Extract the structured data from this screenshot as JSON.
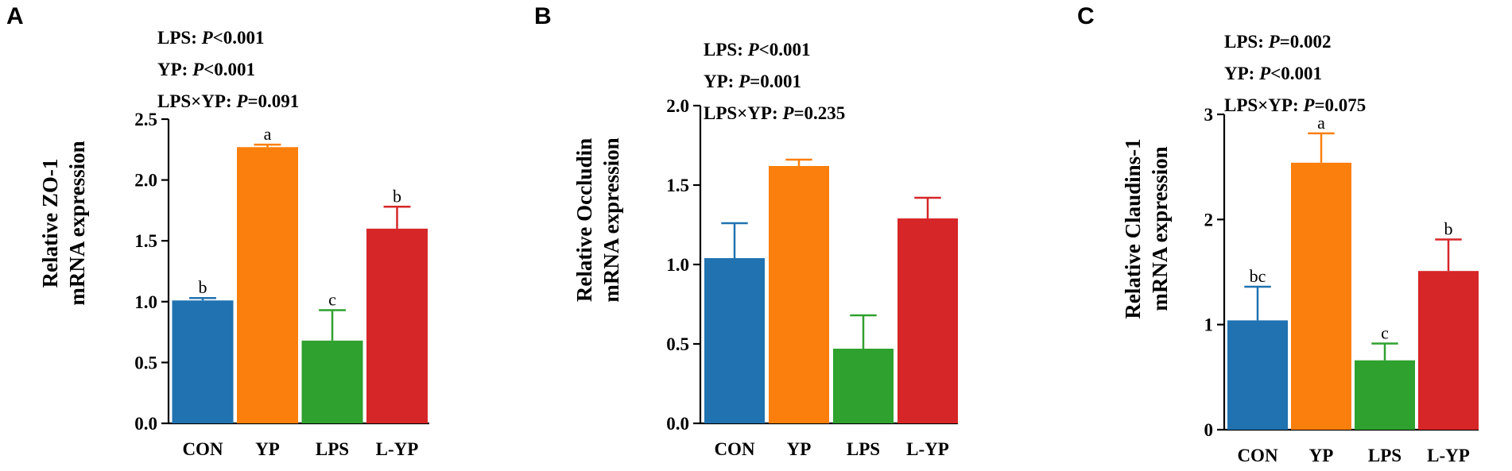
{
  "colors": {
    "CON": "#2072b0",
    "YP": "#fb7f0c",
    "LPS": "#2fa12f",
    "L-YP": "#d62628"
  },
  "chart_data": [
    {
      "panel_label": "A",
      "type": "bar",
      "ylabel_line1": "Relative ZO-1",
      "ylabel_line2": "mRNA expression",
      "categories": [
        "CON",
        "YP",
        "LPS",
        "L-YP"
      ],
      "values": [
        1.01,
        2.27,
        0.68,
        1.6
      ],
      "errors": [
        0.02,
        0.02,
        0.25,
        0.18
      ],
      "letters": [
        "b",
        "a",
        "c",
        "b"
      ],
      "ylim": [
        0,
        2.5
      ],
      "yticks": [
        0,
        0.5,
        1.0,
        1.5,
        2.0,
        2.5
      ],
      "ytick_labels": [
        "0.0",
        "0.5",
        "1.0",
        "1.5",
        "2.0",
        "2.5"
      ],
      "stats": [
        {
          "factor": "LPS",
          "p": "<0.001"
        },
        {
          "factor": "YP",
          "p": "<0.001"
        },
        {
          "factor": "LPS×YP",
          "p": "=0.091"
        }
      ]
    },
    {
      "panel_label": "B",
      "type": "bar",
      "ylabel_line1": "Relative Occludin",
      "ylabel_line2": "mRNA expression",
      "categories": [
        "CON",
        "YP",
        "LPS",
        "L-YP"
      ],
      "values": [
        1.04,
        1.62,
        0.47,
        1.29
      ],
      "errors": [
        0.22,
        0.04,
        0.21,
        0.13
      ],
      "letters": [
        "",
        "",
        "",
        ""
      ],
      "ylim": [
        0,
        2.0
      ],
      "yticks": [
        0,
        0.5,
        1.0,
        1.5,
        2.0
      ],
      "ytick_labels": [
        "0.0",
        "0.5",
        "1.0",
        "1.5",
        "2.0"
      ],
      "stats": [
        {
          "factor": "LPS",
          "p": "<0.001"
        },
        {
          "factor": "YP",
          "p": "=0.001"
        },
        {
          "factor": "LPS×YP",
          "p": "=0.235"
        }
      ]
    },
    {
      "panel_label": "C",
      "type": "bar",
      "ylabel_line1": "Relative Claudins-1",
      "ylabel_line2": "mRNA expression",
      "categories": [
        "CON",
        "YP",
        "LPS",
        "L-YP"
      ],
      "values": [
        1.04,
        2.54,
        0.66,
        1.51
      ],
      "errors": [
        0.32,
        0.28,
        0.16,
        0.3
      ],
      "letters": [
        "bc",
        "a",
        "c",
        "b"
      ],
      "ylim": [
        0,
        3
      ],
      "yticks": [
        0,
        1,
        2,
        3
      ],
      "ytick_labels": [
        "0",
        "1",
        "2",
        "3"
      ],
      "stats": [
        {
          "factor": "LPS",
          "p": "=0.002"
        },
        {
          "factor": "YP",
          "p": "<0.001"
        },
        {
          "factor": "LPS×YP",
          "p": "=0.075"
        }
      ]
    }
  ]
}
